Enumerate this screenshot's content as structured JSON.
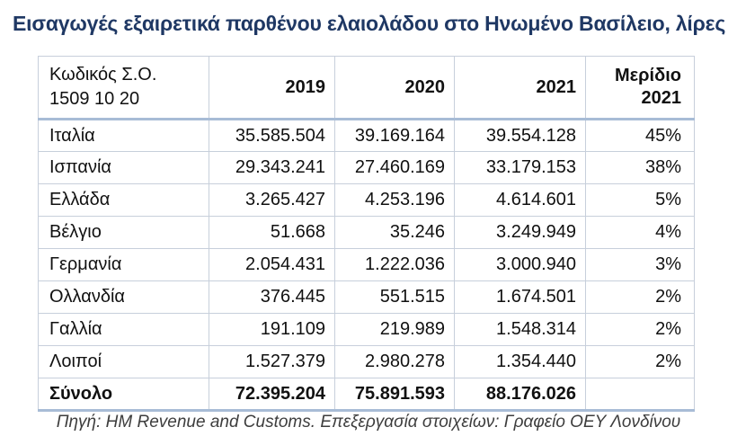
{
  "title": "Εισαγωγές εξαιρετικά παρθένου ελαιολάδου στο Ηνωμένο Βασίλειο, λίρες",
  "table": {
    "header": {
      "code_line1": "Κωδικός Σ.Ο.",
      "code_line2": "1509 10 20",
      "year_2019": "2019",
      "year_2020": "2020",
      "year_2021": "2021",
      "share_line1": "Μερίδιο",
      "share_line2": "2021"
    },
    "rows": [
      {
        "country": "Ιταλία",
        "y2019": "35.585.504",
        "y2020": "39.169.164",
        "y2021": "39.554.128",
        "share": "45%"
      },
      {
        "country": "Ισπανία",
        "y2019": "29.343.241",
        "y2020": "27.460.169",
        "y2021": "33.179.153",
        "share": "38%"
      },
      {
        "country": "Ελλάδα",
        "y2019": "3.265.427",
        "y2020": "4.253.196",
        "y2021": "4.614.601",
        "share": "5%"
      },
      {
        "country": "Βέλγιο",
        "y2019": "51.668",
        "y2020": "35.246",
        "y2021": "3.249.949",
        "share": "4%"
      },
      {
        "country": "Γερμανία",
        "y2019": "2.054.431",
        "y2020": "1.222.036",
        "y2021": "3.000.940",
        "share": "3%"
      },
      {
        "country": "Ολλανδία",
        "y2019": "376.445",
        "y2020": "551.515",
        "y2021": "1.674.501",
        "share": "2%"
      },
      {
        "country": "Γαλλία",
        "y2019": "191.109",
        "y2020": "219.989",
        "y2021": "1.548.314",
        "share": "2%"
      },
      {
        "country": "Λοιποί",
        "y2019": "1.527.379",
        "y2020": "2.980.278",
        "y2021": "1.354.440",
        "share": "2%"
      }
    ],
    "total": {
      "label": "Σύνολο",
      "y2019": "72.395.204",
      "y2020": "75.891.593",
      "y2021": "88.176.026",
      "share": ""
    }
  },
  "footer": "Πηγή: HM Revenue and Customs. Επεξεργασία στοιχείων: Γραφείο ΟΕΥ Λονδίνου",
  "colors": {
    "title": "#1f3864",
    "border_thin": "#c7cfdb",
    "border_thick": "#a8bcd6",
    "text": "#111111",
    "footer_text": "#3d3d3d"
  },
  "chart_data": {
    "type": "table",
    "title": "Εισαγωγές εξαιρετικά παρθένου ελαιολάδου στο Ηνωμένο Βασίλειο, λίρες",
    "columns": [
      "Κωδικός Σ.Ο. 1509 10 20",
      "2019",
      "2020",
      "2021",
      "Μερίδιο 2021"
    ],
    "rows": [
      [
        "Ιταλία",
        35585504,
        39169164,
        39554128,
        "45%"
      ],
      [
        "Ισπανία",
        29343241,
        27460169,
        33179153,
        "38%"
      ],
      [
        "Ελλάδα",
        3265427,
        4253196,
        4614601,
        "5%"
      ],
      [
        "Βέλγιο",
        51668,
        35246,
        3249949,
        "4%"
      ],
      [
        "Γερμανία",
        2054431,
        1222036,
        3000940,
        "3%"
      ],
      [
        "Ολλανδία",
        376445,
        551515,
        1674501,
        "2%"
      ],
      [
        "Γαλλία",
        191109,
        219989,
        1548314,
        "2%"
      ],
      [
        "Λοιποί",
        1527379,
        2980278,
        1354440,
        "2%"
      ]
    ],
    "totals": [
      "Σύνολο",
      72395204,
      75891593,
      88176026,
      ""
    ],
    "source": "Πηγή: HM Revenue and Customs. Επεξεργασία στοιχείων: Γραφείο ΟΕΥ Λονδίνου",
    "unit": "λίρες (GBP)"
  }
}
